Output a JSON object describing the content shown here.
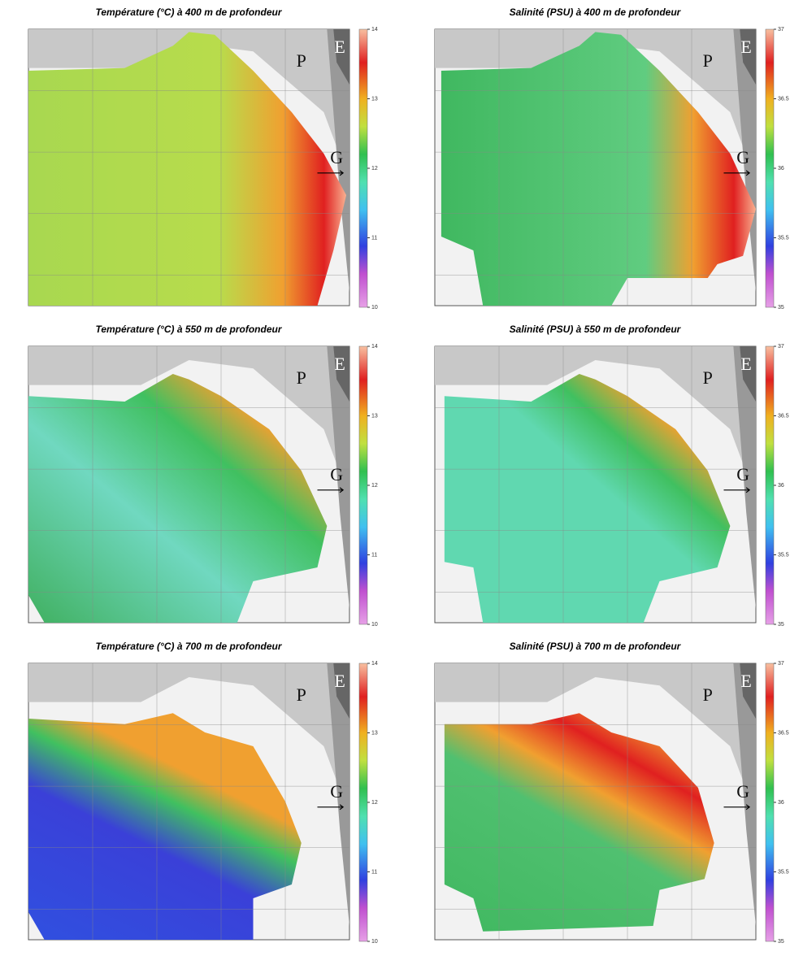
{
  "panels": [
    {
      "title": "Température (°C) à 400 m de profondeur",
      "colorbar": {
        "range": [
          10,
          14
        ],
        "ticks": [
          14,
          13,
          12,
          11,
          10
        ]
      },
      "labels": [
        "P",
        "E",
        "G"
      ]
    },
    {
      "title": "Salinité (PSU) à 400 m de profondeur",
      "colorbar": {
        "range": [
          35,
          37
        ],
        "ticks": [
          37,
          36.5,
          36,
          35.5,
          35
        ]
      },
      "labels": [
        "P",
        "E",
        "G"
      ]
    },
    {
      "title": "Température (°C) à 550 m de profondeur",
      "colorbar": {
        "range": [
          10,
          14
        ],
        "ticks": [
          14,
          13,
          12,
          11,
          10
        ]
      },
      "labels": [
        "P",
        "E",
        "G"
      ]
    },
    {
      "title": "Salinité (PSU) à 550 m de profondeur",
      "colorbar": {
        "range": [
          35,
          37
        ],
        "ticks": [
          37,
          36.5,
          36,
          35.5,
          35
        ]
      },
      "labels": [
        "P",
        "E",
        "G"
      ]
    },
    {
      "title": "Température (°C) à 700 m de profondeur",
      "colorbar": {
        "range": [
          10,
          14
        ],
        "ticks": [
          14,
          13,
          12,
          11,
          10
        ]
      },
      "labels": [
        "P",
        "E",
        "G"
      ]
    },
    {
      "title": "Salinité (PSU) à 700 m de profondeur",
      "colorbar": {
        "range": [
          35,
          37
        ],
        "ticks": [
          37,
          36.5,
          36,
          35.5,
          35
        ]
      },
      "labels": [
        "P",
        "E",
        "G"
      ]
    }
  ]
}
